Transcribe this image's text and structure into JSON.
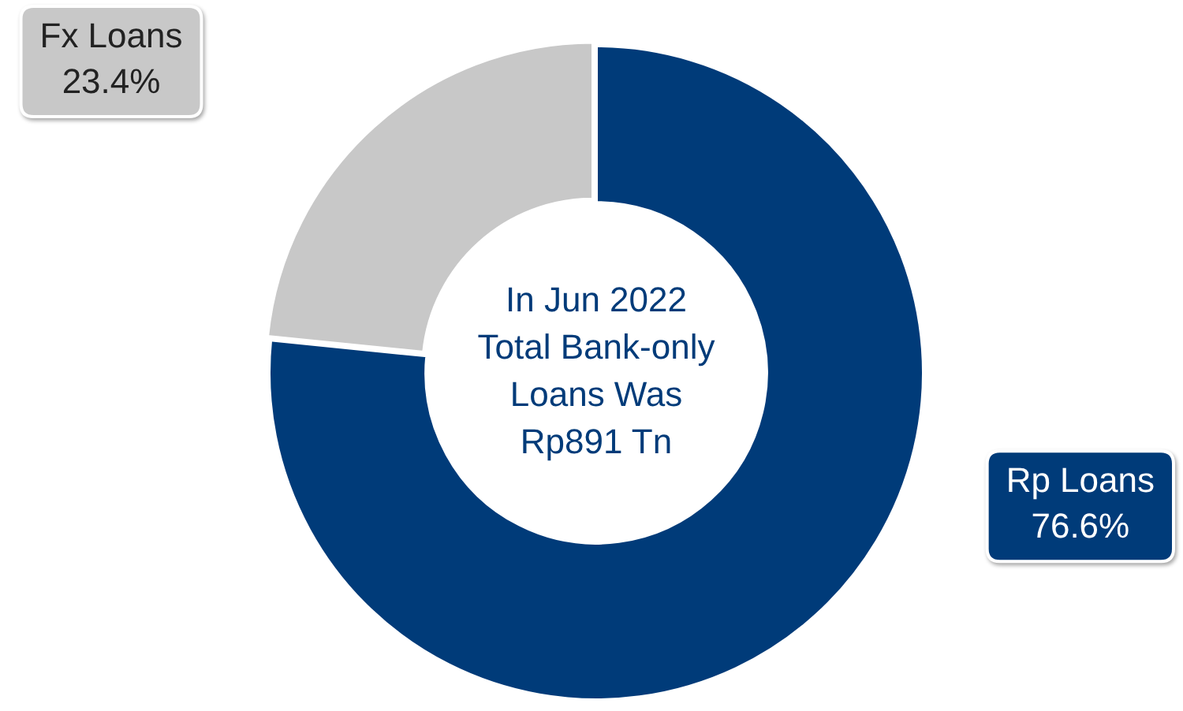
{
  "chart_data": {
    "type": "donut",
    "categories": [
      "Rp Loans",
      "Fx Loans"
    ],
    "values": [
      76.6,
      23.4
    ],
    "colors": [
      "#003b79",
      "#c8c8c8"
    ],
    "value_labels": [
      "76.6%",
      "23.4%"
    ],
    "legend": false,
    "annotations": [
      "In Jun 2022\nTotal Bank-only\nLoans Was\nRp891 Tn"
    ]
  }
}
